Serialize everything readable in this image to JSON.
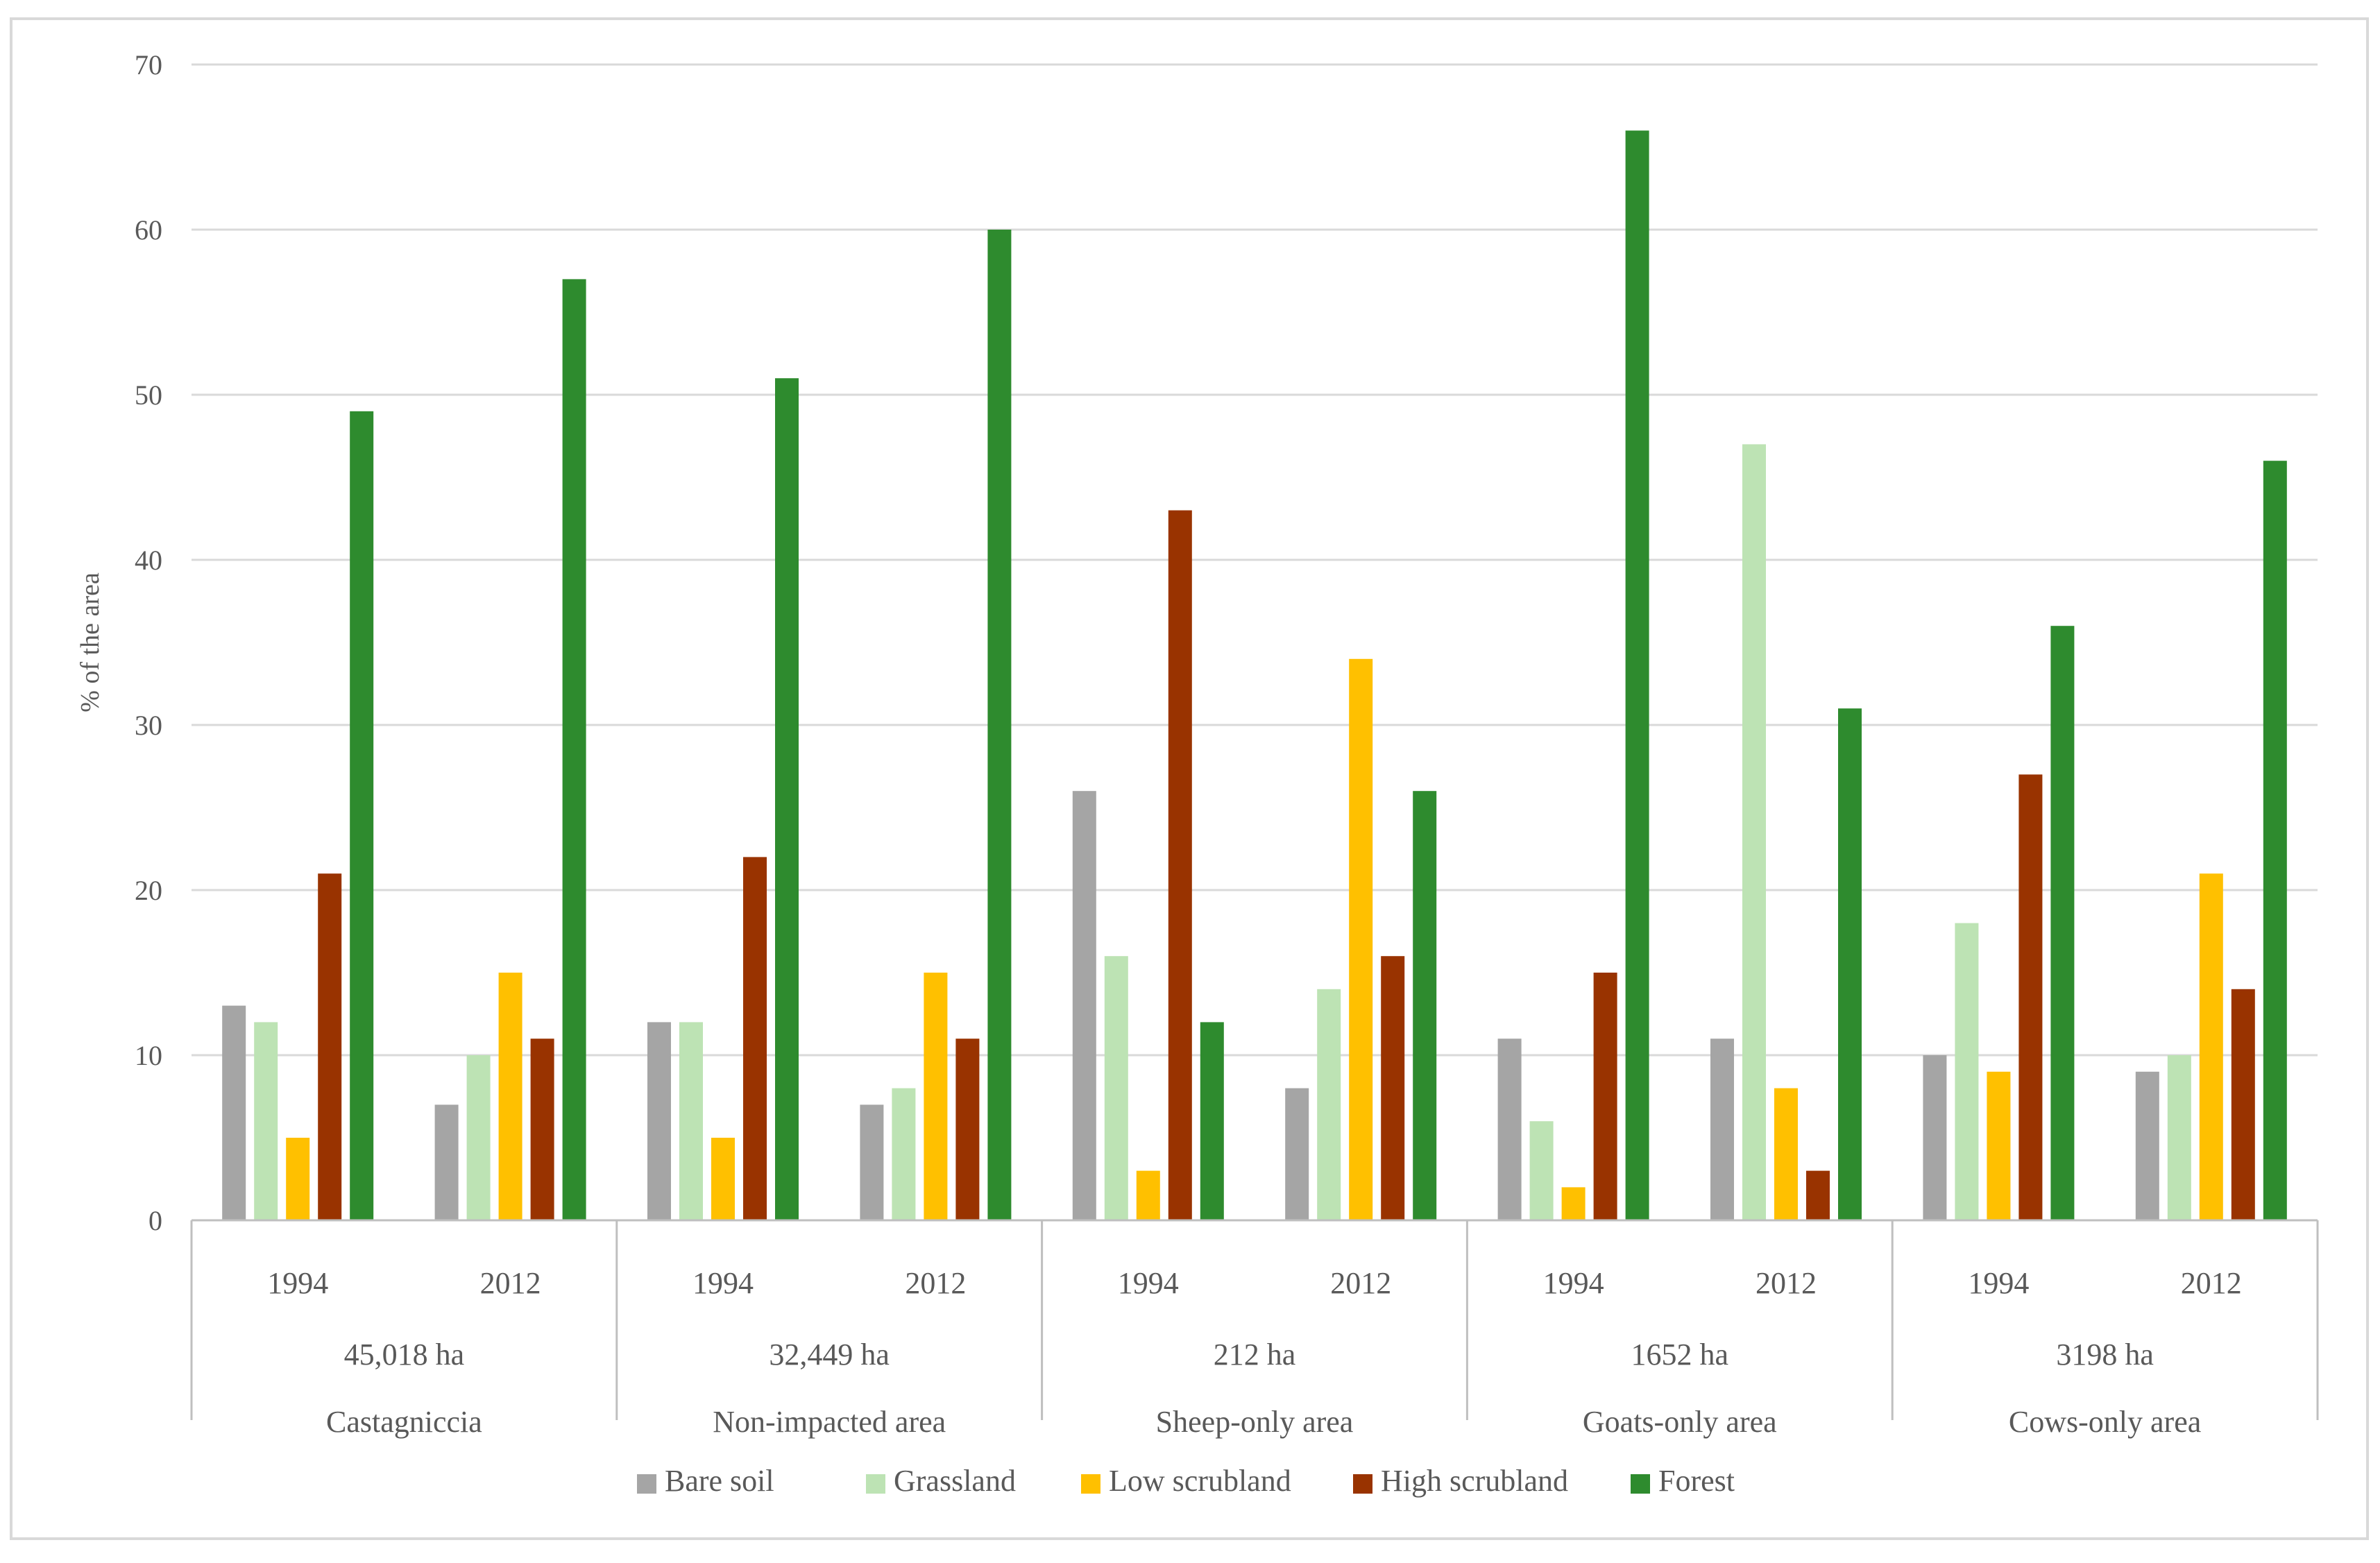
{
  "chart_data": {
    "type": "bar",
    "title": "",
    "ylabel": "% of the area",
    "xlabel": "",
    "ylim": [
      0,
      70
    ],
    "yticks": [
      0,
      10,
      20,
      30,
      40,
      50,
      60,
      70
    ],
    "grid": true,
    "legend_position": "bottom",
    "groups": [
      {
        "region": "Castagniccia",
        "area": "45,018 ha",
        "years": [
          "1994",
          "2012"
        ]
      },
      {
        "region": "Non-impacted area",
        "area": "32,449 ha",
        "years": [
          "1994",
          "2012"
        ]
      },
      {
        "region": "Sheep-only area",
        "area": "212 ha",
        "years": [
          "1994",
          "2012"
        ]
      },
      {
        "region": "Goats-only area",
        "area": "1652 ha",
        "years": [
          "1994",
          "2012"
        ]
      },
      {
        "region": "Cows-only area",
        "area": "3198 ha",
        "years": [
          "1994",
          "2012"
        ]
      }
    ],
    "categories": [
      "Castagniccia 1994",
      "Castagniccia 2012",
      "Non-impacted area 1994",
      "Non-impacted area 2012",
      "Sheep-only area 1994",
      "Sheep-only area 2012",
      "Goats-only area 1994",
      "Goats-only area 2012",
      "Cows-only area 1994",
      "Cows-only area 2012"
    ],
    "series": [
      {
        "name": "Bare soil",
        "color": "#a5a5a5",
        "values": [
          13,
          7,
          12,
          7,
          26,
          8,
          11,
          11,
          10,
          9
        ]
      },
      {
        "name": "Grassland",
        "color": "#bde3b4",
        "values": [
          12,
          10,
          12,
          8,
          16,
          14,
          6,
          47,
          18,
          10
        ]
      },
      {
        "name": "Low scrubland",
        "color": "#ffc000",
        "values": [
          5,
          15,
          5,
          15,
          3,
          34,
          2,
          8,
          9,
          21
        ]
      },
      {
        "name": "High scrubland",
        "color": "#993300",
        "values": [
          21,
          11,
          22,
          11,
          43,
          16,
          15,
          3,
          27,
          14
        ]
      },
      {
        "name": "Forest",
        "color": "#2e8b2e",
        "values": [
          49,
          57,
          51,
          60,
          12,
          26,
          66,
          31,
          36,
          46
        ]
      }
    ]
  },
  "colors": {
    "gridline": "#d9d9d9",
    "axis_line": "#bfbfbf",
    "text": "#595959"
  }
}
